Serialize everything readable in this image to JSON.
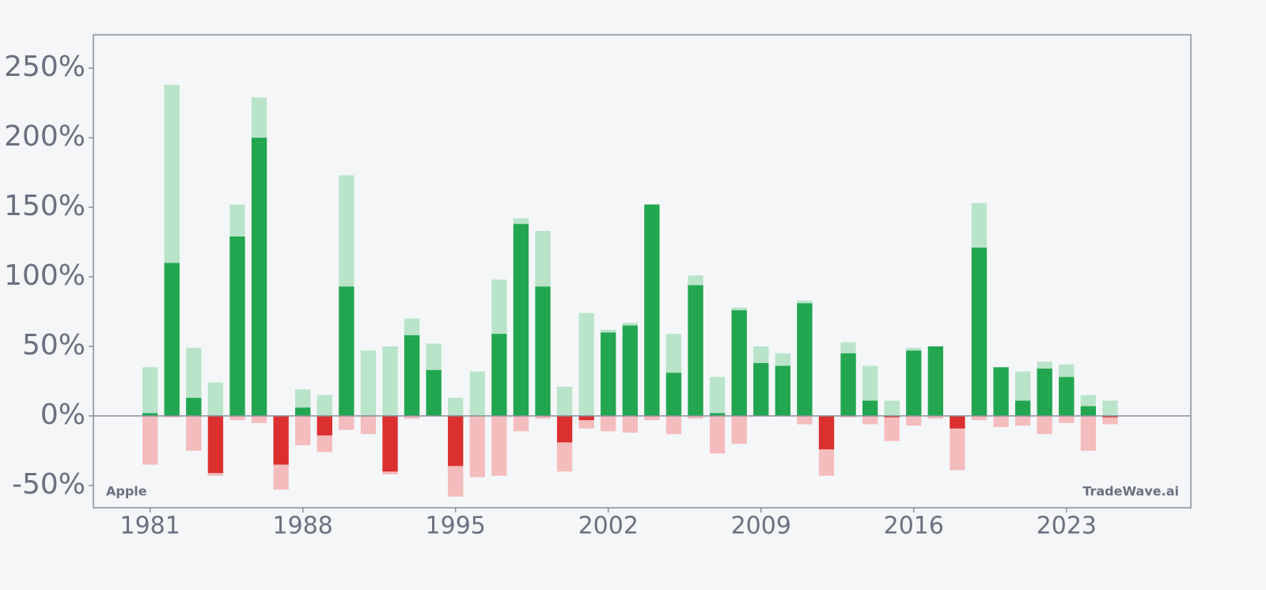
{
  "chart_data": {
    "type": "bar",
    "annotations": [
      "Apple",
      "TradeWave.ai"
    ],
    "x": [
      1981,
      1982,
      1983,
      1984,
      1985,
      1986,
      1987,
      1988,
      1989,
      1990,
      1991,
      1992,
      1993,
      1994,
      1995,
      1996,
      1997,
      1998,
      1999,
      2000,
      2001,
      2002,
      2003,
      2004,
      2005,
      2006,
      2007,
      2008,
      2009,
      2010,
      2011,
      2012,
      2013,
      2014,
      2015,
      2016,
      2017,
      2018,
      2019,
      2020,
      2021,
      2022,
      2023,
      2024,
      2025
    ],
    "series": [
      {
        "color": "#b9e4c9",
        "values": [
          35,
          238,
          49,
          24,
          152,
          229,
          0,
          19,
          15,
          173,
          47,
          50,
          70,
          52,
          13,
          32,
          98,
          142,
          133,
          21,
          74,
          62,
          67,
          152,
          59,
          101,
          28,
          78,
          50,
          45,
          83,
          0,
          53,
          36,
          11,
          49,
          50,
          0,
          153,
          35,
          32,
          39,
          37,
          15,
          11
        ]
      },
      {
        "color": "#f4bcbc",
        "values": [
          -35,
          -1,
          -25,
          -43,
          -3,
          -5,
          -53,
          -21,
          -26,
          -10,
          -13,
          -42,
          -2,
          0,
          -58,
          -44,
          -43,
          -11,
          -2,
          -40,
          -9,
          -11,
          -12,
          -3,
          -13,
          -2,
          -27,
          -20,
          0,
          0,
          -6,
          -43,
          -1,
          -6,
          -18,
          -7,
          -2,
          -39,
          -3,
          -8,
          -7,
          -13,
          -5,
          -25,
          -6
        ]
      },
      {
        "color": "#22a650",
        "negative_color": "#dc2f2f",
        "values": [
          2,
          110,
          13,
          -41,
          129,
          200,
          -35,
          6,
          -14,
          93,
          0,
          -40,
          58,
          33,
          -36,
          0,
          59,
          138,
          93,
          -19,
          -3,
          60,
          65,
          152,
          31,
          94,
          2,
          76,
          38,
          36,
          81,
          -24,
          45,
          11,
          -1,
          47,
          50,
          -9,
          121,
          35,
          11,
          34,
          28,
          7,
          -1
        ]
      }
    ],
    "xlim": [
      1978.4,
      2028.7
    ],
    "xticks": [
      1981,
      1988,
      1995,
      2002,
      2009,
      2016,
      2023
    ],
    "ylim": [
      -66,
      274
    ],
    "yticks": [
      {
        "value": -50,
        "label": "-50%"
      },
      {
        "value": 0,
        "label": "0%"
      },
      {
        "value": 50,
        "label": "50%"
      },
      {
        "value": 100,
        "label": "100%"
      },
      {
        "value": 150,
        "label": "150%"
      },
      {
        "value": 200,
        "label": "200%"
      },
      {
        "value": 250,
        "label": "250%"
      }
    ]
  }
}
